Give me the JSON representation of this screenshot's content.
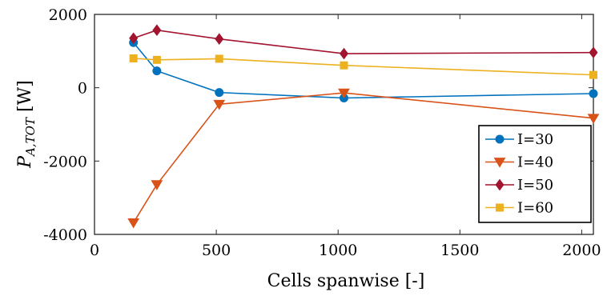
{
  "chart_data": {
    "type": "line",
    "title": "",
    "xlabel": "Cells spanwise [-]",
    "ylabel_main": "P",
    "ylabel_sub": "A,TOT",
    "ylabel_unit": " [W]",
    "xlim": [
      0,
      2048
    ],
    "ylim": [
      -4000,
      2000
    ],
    "xticks": [
      0,
      500,
      1000,
      1500,
      2000
    ],
    "yticks": [
      -4000,
      -2000,
      0,
      2000
    ],
    "xtick_labels": [
      "0",
      "500",
      "1000",
      "1500",
      "2000"
    ],
    "ytick_labels": [
      "-4000",
      "-2000",
      "0",
      "2000"
    ],
    "grid": false,
    "legend_position": "bottom-right",
    "series": [
      {
        "name": "I=30",
        "color": "#0072BD",
        "marker": "circle",
        "x": [
          160,
          256,
          512,
          1024,
          2048
        ],
        "y": [
          1230,
          460,
          -130,
          -280,
          -160
        ]
      },
      {
        "name": "I=40",
        "color": "#D95319",
        "marker": "triangle-down",
        "x": [
          160,
          256,
          512,
          1024,
          2048
        ],
        "y": [
          -3680,
          -2640,
          -450,
          -140,
          -830
        ]
      },
      {
        "name": "I=50",
        "color": "#A2142F",
        "marker": "diamond",
        "x": [
          160,
          256,
          512,
          1024,
          2048
        ],
        "y": [
          1350,
          1570,
          1330,
          930,
          960
        ]
      },
      {
        "name": "I=60",
        "color": "#EDB120",
        "marker": "square",
        "x": [
          160,
          256,
          512,
          1024,
          2048
        ],
        "y": [
          800,
          760,
          790,
          610,
          350
        ]
      }
    ]
  }
}
